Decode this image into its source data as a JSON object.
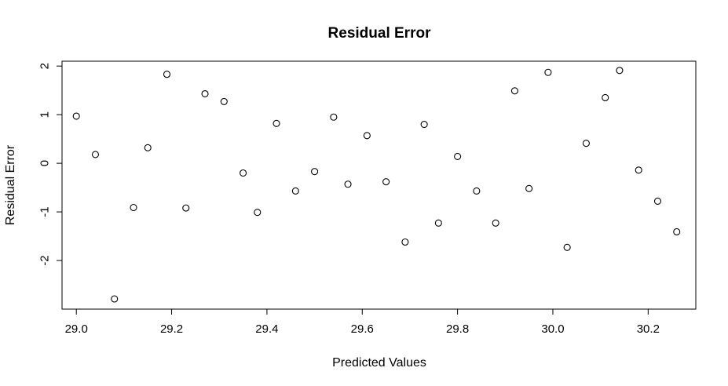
{
  "chart_data": {
    "type": "scatter",
    "title": "Residual Error",
    "xlabel": "Predicted Values",
    "ylabel": "Residual Error",
    "xlim": [
      28.97,
      30.3
    ],
    "ylim": [
      -3.0,
      2.1
    ],
    "xticks": [
      29.0,
      29.2,
      29.4,
      29.6,
      29.8,
      30.0,
      30.2
    ],
    "xtick_labels": [
      "29.0",
      "29.2",
      "29.4",
      "29.6",
      "29.8",
      "30.0",
      "30.2"
    ],
    "yticks": [
      2,
      1,
      0,
      -1,
      -2
    ],
    "ytick_labels": [
      "2",
      "1",
      "0",
      "-1",
      "-2"
    ],
    "grid": false,
    "marker": "open-circle",
    "points": [
      {
        "x": 29.0,
        "y": 0.97
      },
      {
        "x": 29.04,
        "y": 0.18
      },
      {
        "x": 29.08,
        "y": -2.79
      },
      {
        "x": 29.12,
        "y": -0.91
      },
      {
        "x": 29.15,
        "y": 0.32
      },
      {
        "x": 29.19,
        "y": 1.83
      },
      {
        "x": 29.23,
        "y": -0.92
      },
      {
        "x": 29.27,
        "y": 1.43
      },
      {
        "x": 29.31,
        "y": 1.27
      },
      {
        "x": 29.35,
        "y": -0.2
      },
      {
        "x": 29.38,
        "y": -1.01
      },
      {
        "x": 29.42,
        "y": 0.82
      },
      {
        "x": 29.46,
        "y": -0.57
      },
      {
        "x": 29.5,
        "y": -0.17
      },
      {
        "x": 29.54,
        "y": 0.95
      },
      {
        "x": 29.57,
        "y": -0.43
      },
      {
        "x": 29.61,
        "y": 0.57
      },
      {
        "x": 29.65,
        "y": -0.38
      },
      {
        "x": 29.69,
        "y": -1.62
      },
      {
        "x": 29.73,
        "y": 0.8
      },
      {
        "x": 29.76,
        "y": -1.23
      },
      {
        "x": 29.8,
        "y": 0.14
      },
      {
        "x": 29.84,
        "y": -0.57
      },
      {
        "x": 29.88,
        "y": -1.23
      },
      {
        "x": 29.92,
        "y": 1.49
      },
      {
        "x": 29.95,
        "y": -0.52
      },
      {
        "x": 29.99,
        "y": 1.87
      },
      {
        "x": 30.03,
        "y": -1.73
      },
      {
        "x": 30.07,
        "y": 0.41
      },
      {
        "x": 30.11,
        "y": 1.35
      },
      {
        "x": 30.14,
        "y": 1.91
      },
      {
        "x": 30.18,
        "y": -0.14
      },
      {
        "x": 30.22,
        "y": -0.78
      },
      {
        "x": 30.26,
        "y": -1.41
      }
    ]
  }
}
